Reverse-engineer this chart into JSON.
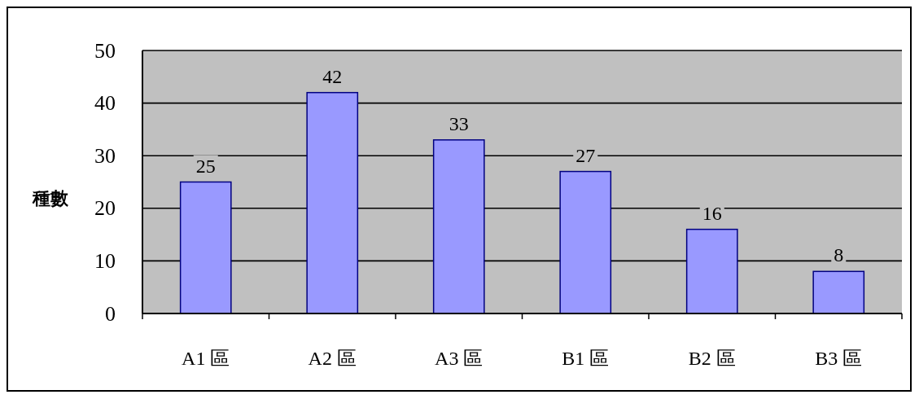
{
  "chart_data": {
    "type": "bar",
    "ylabel": "種數",
    "categories": [
      "A1 區",
      "A2 區",
      "A3 區",
      "B1 區",
      "B2 區",
      "B3 區"
    ],
    "values": [
      25,
      42,
      33,
      27,
      16,
      8
    ],
    "color": "#9999ff",
    "ylim": [
      0,
      50
    ],
    "yticks": [
      0,
      10,
      20,
      30,
      40,
      50
    ],
    "grid": "y",
    "data_labels": true
  }
}
